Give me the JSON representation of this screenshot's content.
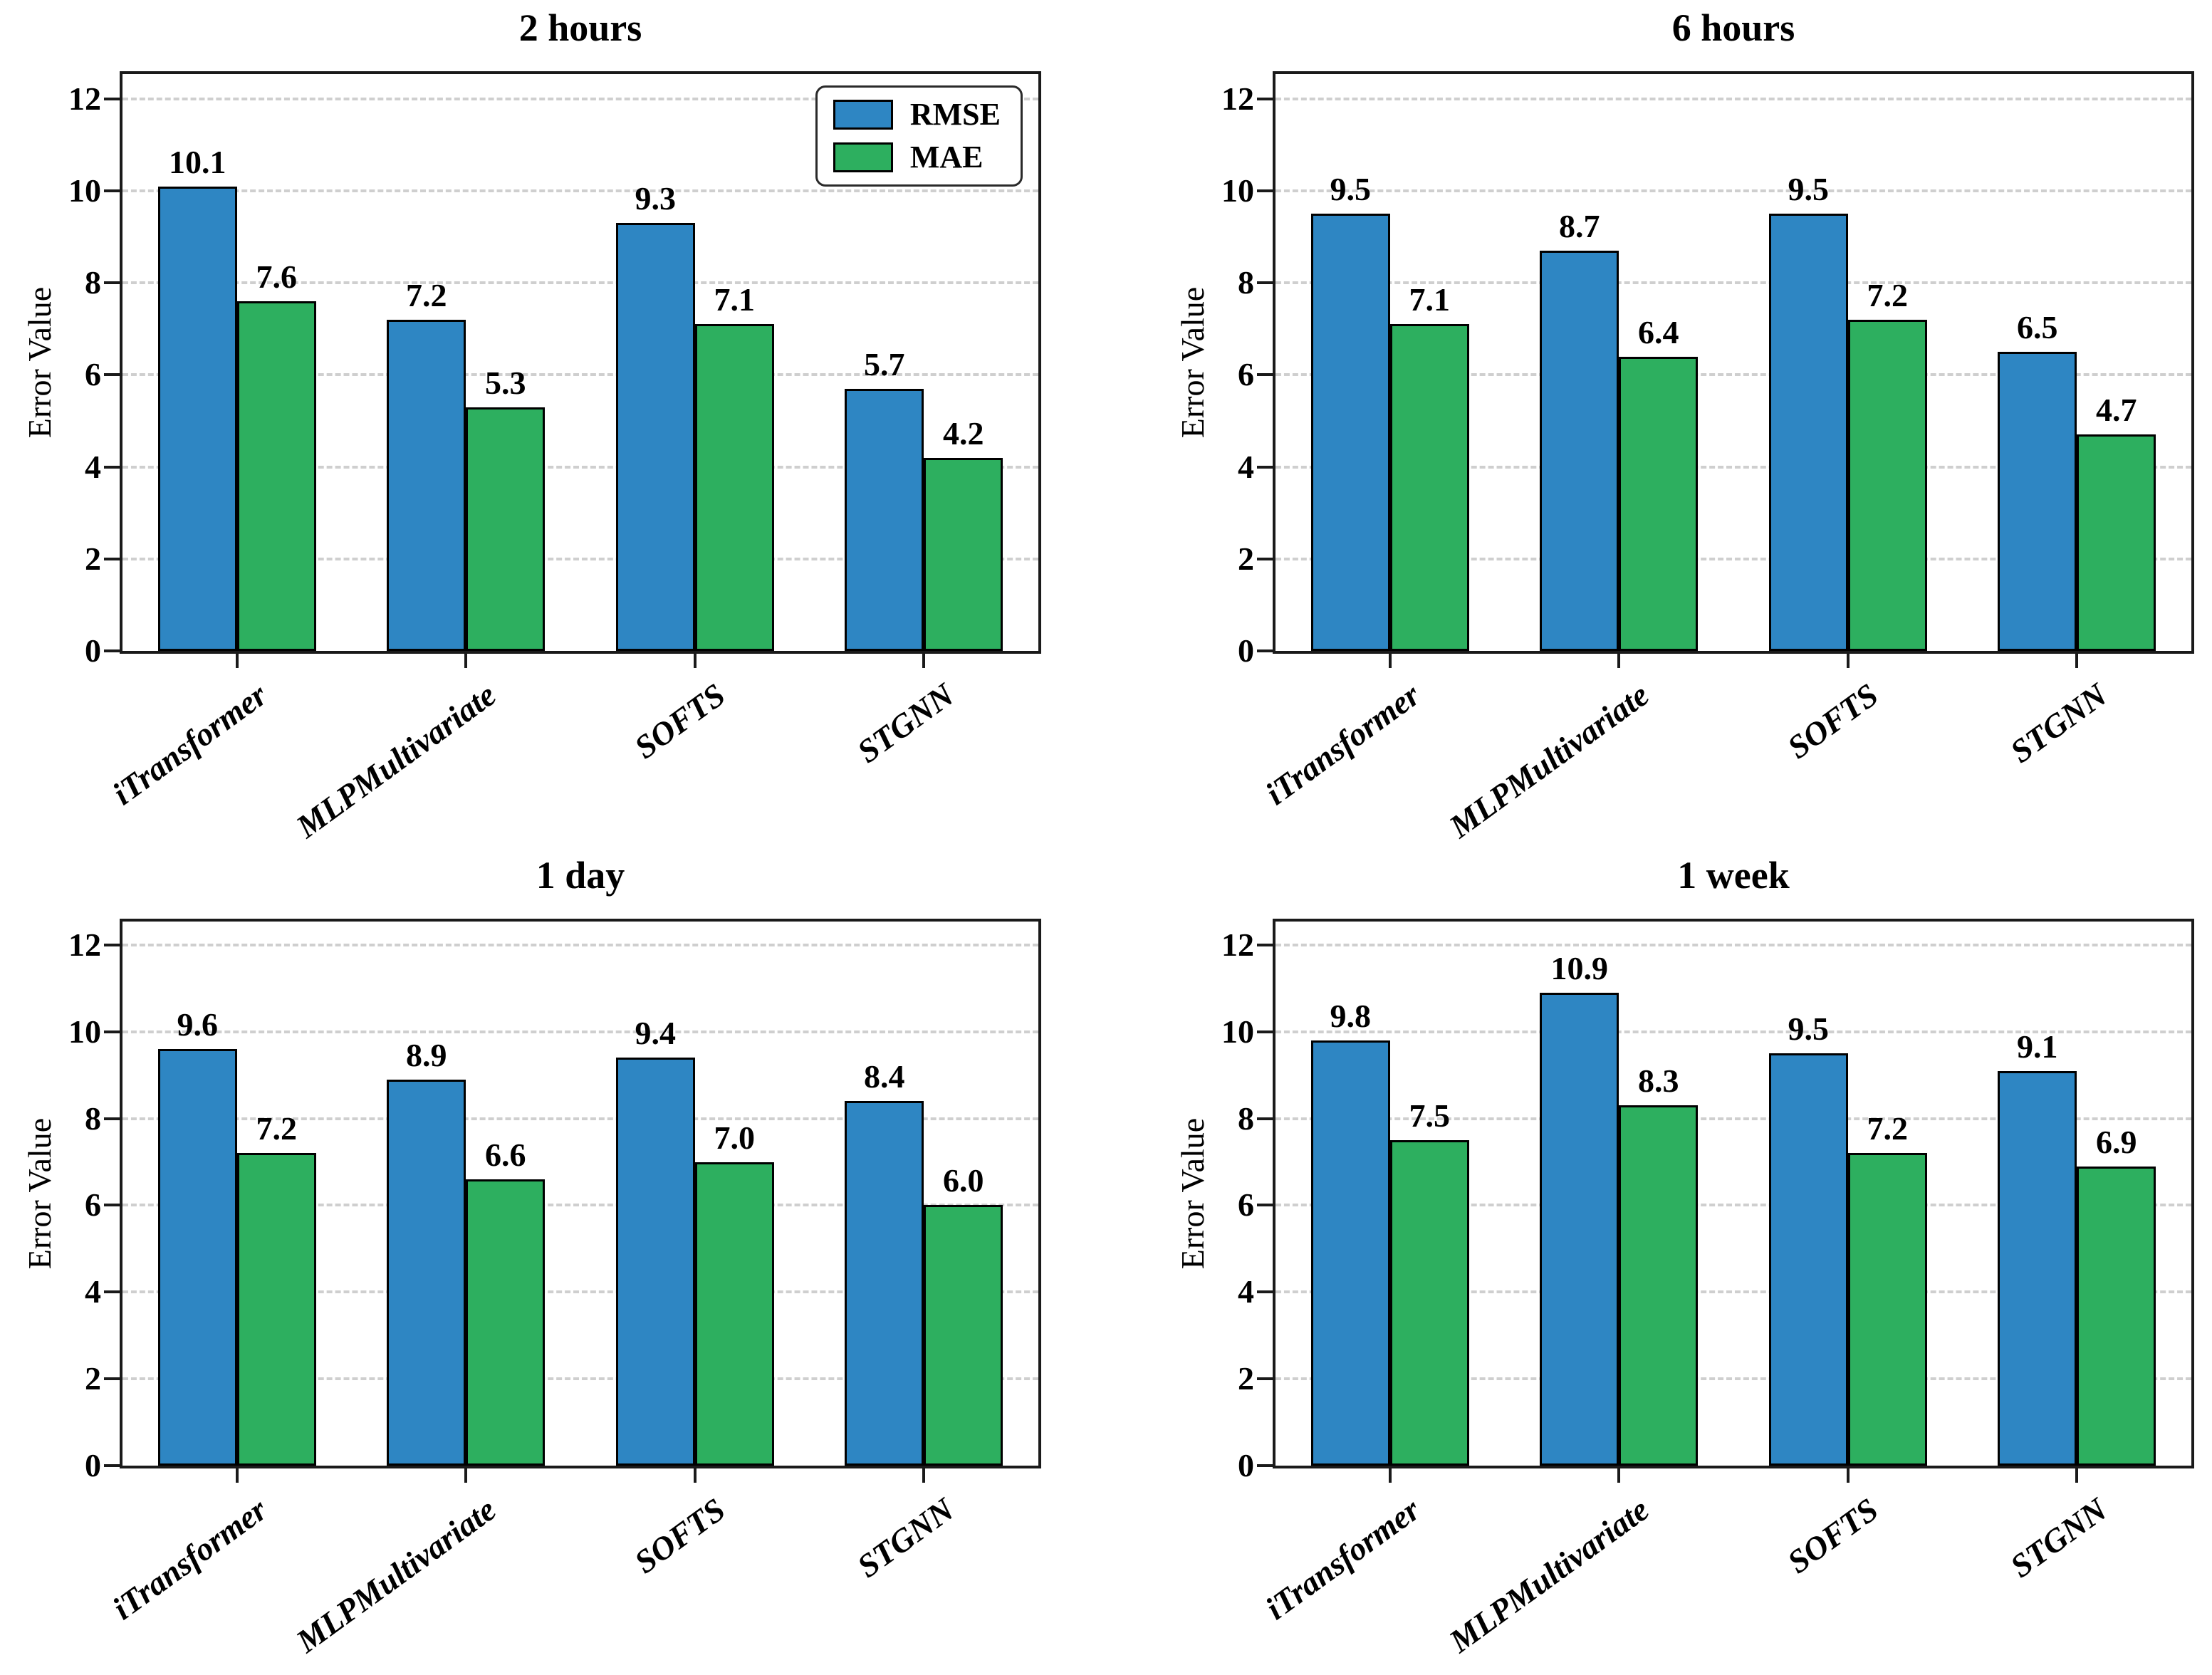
{
  "figure": {
    "ylabel": "Error Value",
    "yticks": [
      0,
      2,
      4,
      6,
      8,
      10,
      12
    ],
    "legend": {
      "position": "upper right",
      "items": [
        {
          "label": "RMSE",
          "color": "#2E86C3"
        },
        {
          "label": "MAE",
          "color": "#2DAF5F"
        }
      ]
    },
    "colors": {
      "rmse": "#2E86C3",
      "mae": "#2DAF5F",
      "bar_edge": "#000000",
      "grid": "#cfcfcf",
      "axis": "#1a1a1a"
    }
  },
  "chart_data": [
    {
      "type": "bar",
      "title": "2 hours",
      "ylabel": "Error Value",
      "ylim": [
        0,
        12.6
      ],
      "grid": true,
      "legend_position": "upper right",
      "categories": [
        "iTransformer",
        "MLPMultivariate",
        "SOFTS",
        "STGNN"
      ],
      "series": [
        {
          "name": "RMSE",
          "values": [
            10.1,
            7.2,
            9.3,
            5.7
          ]
        },
        {
          "name": "MAE",
          "values": [
            7.6,
            5.3,
            7.1,
            4.2
          ]
        }
      ]
    },
    {
      "type": "bar",
      "title": "6 hours",
      "ylabel": "Error Value",
      "ylim": [
        0,
        12.6
      ],
      "grid": true,
      "categories": [
        "iTransformer",
        "MLPMultivariate",
        "SOFTS",
        "STGNN"
      ],
      "series": [
        {
          "name": "RMSE",
          "values": [
            9.5,
            8.7,
            9.5,
            6.5
          ]
        },
        {
          "name": "MAE",
          "values": [
            7.1,
            6.4,
            7.2,
            4.7
          ]
        }
      ]
    },
    {
      "type": "bar",
      "title": "1 day",
      "ylabel": "Error Value",
      "ylim": [
        0,
        12.6
      ],
      "grid": true,
      "categories": [
        "iTransformer",
        "MLPMultivariate",
        "SOFTS",
        "STGNN"
      ],
      "series": [
        {
          "name": "RMSE",
          "values": [
            9.6,
            8.9,
            9.4,
            8.4
          ]
        },
        {
          "name": "MAE",
          "values": [
            7.2,
            6.6,
            7.0,
            6.0
          ]
        }
      ]
    },
    {
      "type": "bar",
      "title": "1 week",
      "ylabel": "Error Value",
      "ylim": [
        0,
        12.6
      ],
      "grid": true,
      "categories": [
        "iTransformer",
        "MLPMultivariate",
        "SOFTS",
        "STGNN"
      ],
      "series": [
        {
          "name": "RMSE",
          "values": [
            9.8,
            10.9,
            9.5,
            9.1
          ]
        },
        {
          "name": "MAE",
          "values": [
            7.5,
            8.3,
            7.2,
            6.9
          ]
        }
      ]
    }
  ]
}
